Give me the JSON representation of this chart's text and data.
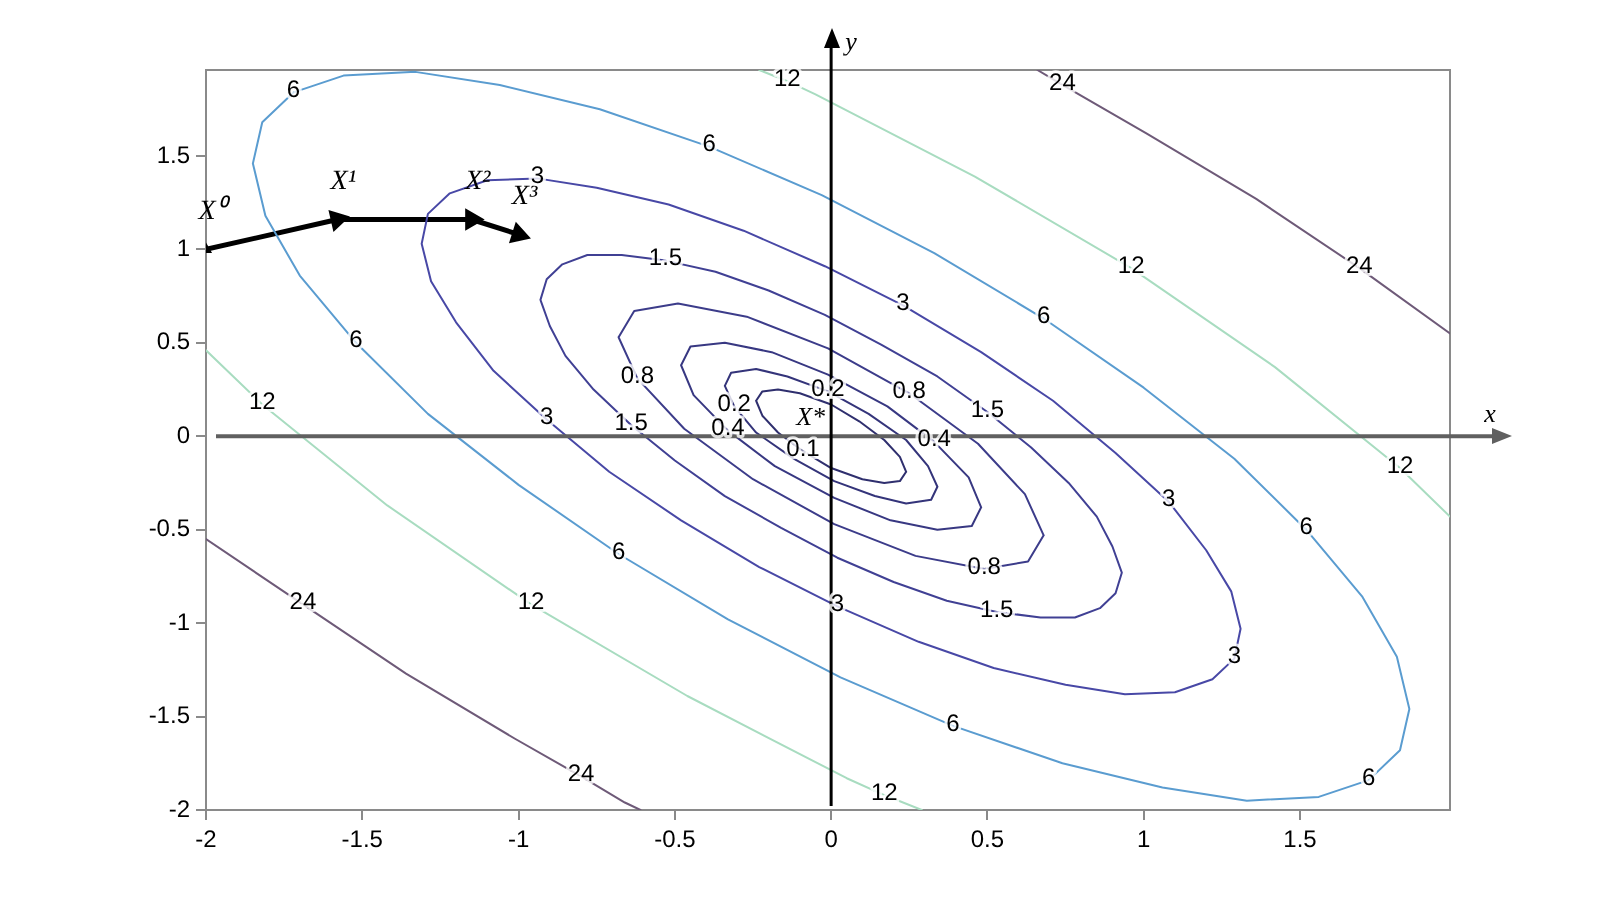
{
  "chart_data": {
    "type": "line",
    "xlim": [
      -2,
      1.98
    ],
    "ylim": [
      -2,
      1.96
    ],
    "xticks": [
      -2,
      -1.5,
      -1,
      -0.5,
      0,
      0.5,
      1,
      1.5
    ],
    "yticks": [
      -2,
      -1.5,
      -1,
      -0.5,
      0,
      0.5,
      1,
      1.5
    ],
    "grid": false,
    "legend": false,
    "series": [
      {
        "color": "#2f2f6e",
        "x": [
          -0.24,
          -0.22,
          -0.17,
          -0.1,
          0.0,
          0.09,
          0.17,
          0.22,
          0.24,
          null,
          -0.24,
          -0.22,
          -0.17,
          -0.09,
          0.0,
          0.1,
          0.17,
          0.22,
          0.24
        ],
        "values": [
          0.19,
          0.24,
          0.25,
          0.23,
          0.17,
          0.08,
          -0.02,
          -0.11,
          -0.19,
          null,
          0.19,
          0.11,
          0.02,
          -0.08,
          -0.17,
          -0.23,
          -0.25,
          -0.24,
          -0.19
        ]
      },
      {
        "color": "#34347a",
        "x": [
          -0.34,
          -0.32,
          -0.24,
          -0.14,
          -0.01,
          0.12,
          0.24,
          0.31,
          0.34,
          null,
          -0.34,
          -0.31,
          -0.24,
          -0.12,
          0.01,
          0.14,
          0.24,
          0.32,
          0.34
        ],
        "values": [
          0.27,
          0.34,
          0.36,
          0.32,
          0.24,
          0.12,
          -0.02,
          -0.16,
          -0.27,
          null,
          0.27,
          0.16,
          0.02,
          -0.12,
          -0.24,
          -0.32,
          -0.36,
          -0.34,
          -0.27
        ]
      },
      {
        "color": "#383882",
        "x": [
          -0.48,
          -0.45,
          -0.34,
          -0.19,
          -0.01,
          0.18,
          0.33,
          0.44,
          0.48,
          null,
          -0.48,
          -0.44,
          -0.33,
          -0.18,
          0.01,
          0.19,
          0.34,
          0.45,
          0.48
        ],
        "values": [
          0.38,
          0.48,
          0.5,
          0.45,
          0.33,
          0.16,
          -0.03,
          -0.22,
          -0.38,
          null,
          0.38,
          0.22,
          0.03,
          -0.16,
          -0.33,
          -0.45,
          -0.5,
          -0.48,
          -0.38
        ]
      },
      {
        "color": "#3c3c8a",
        "x": [
          -0.68,
          -0.63,
          -0.49,
          -0.27,
          -0.01,
          0.25,
          0.47,
          0.62,
          0.68,
          null,
          -0.68,
          -0.62,
          -0.47,
          -0.25,
          0.01,
          0.27,
          0.49,
          0.63,
          0.68
        ],
        "values": [
          0.53,
          0.67,
          0.71,
          0.64,
          0.47,
          0.23,
          -0.04,
          -0.31,
          -0.53,
          null,
          0.53,
          0.31,
          0.04,
          -0.23,
          -0.47,
          -0.64,
          -0.71,
          -0.67,
          -0.53
        ]
      },
      {
        "color": "#404094",
        "x": [
          -0.93,
          -0.91,
          -0.86,
          -0.78,
          -0.67,
          -0.53,
          -0.37,
          -0.2,
          -0.02,
          0.16,
          0.34,
          0.5,
          0.64,
          0.76,
          0.85,
          0.9,
          0.93,
          null,
          -0.93,
          -0.9,
          -0.85,
          -0.76,
          -0.64,
          -0.5,
          -0.34,
          -0.16,
          0.02,
          0.2,
          0.37,
          0.53,
          0.67,
          0.78,
          0.86,
          0.91,
          0.93
        ],
        "values": [
          0.73,
          0.84,
          0.92,
          0.97,
          0.97,
          0.94,
          0.88,
          0.78,
          0.65,
          0.49,
          0.32,
          0.13,
          -0.06,
          -0.25,
          -0.43,
          -0.59,
          -0.73,
          null,
          0.73,
          0.59,
          0.43,
          0.25,
          0.06,
          -0.13,
          -0.32,
          -0.49,
          -0.65,
          -0.78,
          -0.88,
          -0.94,
          -0.97,
          -0.97,
          -0.92,
          -0.84,
          -0.73
        ]
      },
      {
        "color": "#4848a6",
        "x": [
          -1.31,
          -1.29,
          -1.22,
          -1.1,
          -0.94,
          -0.75,
          -0.52,
          -0.28,
          -0.02,
          0.23,
          0.48,
          0.71,
          0.91,
          1.08,
          1.2,
          1.28,
          1.31,
          null,
          -1.31,
          -1.28,
          -1.2,
          -1.08,
          -0.91,
          -0.71,
          -0.48,
          -0.23,
          0.02,
          0.28,
          0.52,
          0.75,
          0.94,
          1.1,
          1.22,
          1.29,
          1.31
        ],
        "values": [
          1.03,
          1.19,
          1.3,
          1.37,
          1.38,
          1.33,
          1.24,
          1.1,
          0.91,
          0.7,
          0.45,
          0.19,
          -0.09,
          -0.35,
          -0.61,
          -0.83,
          -1.03,
          null,
          1.03,
          0.83,
          0.61,
          0.35,
          0.09,
          -0.19,
          -0.45,
          -0.7,
          -0.91,
          -1.1,
          -1.24,
          -1.33,
          -1.38,
          -1.37,
          -1.3,
          -1.19,
          -1.03
        ]
      },
      {
        "color": "#5a9cd0",
        "x": [
          -1.85,
          -1.82,
          -1.72,
          -1.56,
          -1.33,
          -1.06,
          -0.74,
          -0.39,
          -0.03,
          0.33,
          0.68,
          1.0,
          1.29,
          1.52,
          1.7,
          1.81,
          1.85,
          null,
          -1.85,
          -1.81,
          -1.7,
          -1.52,
          -1.29,
          -1.0,
          -0.68,
          -0.33,
          0.03,
          0.39,
          0.74,
          1.06,
          1.33,
          1.56,
          1.72,
          1.82,
          1.85
        ],
        "values": [
          1.46,
          1.68,
          1.84,
          1.93,
          1.95,
          1.88,
          1.75,
          1.55,
          1.29,
          0.98,
          0.63,
          0.26,
          -0.12,
          -0.5,
          -0.86,
          -1.18,
          -1.46,
          null,
          1.46,
          1.18,
          0.86,
          0.5,
          0.12,
          -0.26,
          -0.63,
          -0.98,
          -1.29,
          -1.55,
          -1.75,
          -1.88,
          -1.95,
          -1.93,
          -1.84,
          -1.68,
          -1.46
        ]
      },
      {
        "color": "#a8dcc0",
        "x": [
          -0.23,
          -0.14,
          -0.05,
          0.46,
          0.96,
          1.42,
          1.82,
          1.98,
          null,
          -2,
          -1.82,
          -1.42,
          -0.96,
          -0.46,
          0.05,
          0.17,
          0.29
        ],
        "values": [
          1.96,
          1.9,
          1.83,
          1.39,
          0.9,
          0.37,
          -0.17,
          -0.43,
          null,
          0.46,
          0.17,
          -0.37,
          -0.9,
          -1.39,
          -1.83,
          -1.92,
          -2
        ]
      },
      {
        "color": "#6e5a78",
        "x": [
          0.66,
          0.74,
          1.01,
          1.36,
          1.69,
          1.98,
          null,
          -2,
          -1.69,
          -1.36,
          -1.01,
          -0.8,
          -0.66,
          -0.61
        ],
        "values": [
          1.96,
          1.88,
          1.62,
          1.27,
          0.9,
          0.55,
          null,
          -0.55,
          -0.9,
          -1.27,
          -1.62,
          -1.82,
          -1.96,
          -2
        ]
      },
      {
        "color": "#000000",
        "marker": "triangle",
        "x": [
          -2,
          -1.58,
          -1.15,
          -1.0
        ],
        "values": [
          1.0,
          1.16,
          1.16,
          1.08
        ]
      }
    ],
    "ref_lines": [
      {
        "axis": "y",
        "value": 0,
        "label": "x",
        "color": "#606060"
      },
      {
        "axis": "x",
        "value": 0,
        "label": "y",
        "color": "#000000"
      }
    ],
    "annotations": [
      {
        "text": "X⁰",
        "x": -2,
        "y": 1.0
      },
      {
        "text": "X¹",
        "x": -1.58,
        "y": 1.16
      },
      {
        "text": "X²",
        "x": -1.15,
        "y": 1.16
      },
      {
        "text": "X³",
        "x": -1.0,
        "y": 1.08
      },
      {
        "text": "X*",
        "x": 0,
        "y": 0
      },
      {
        "text": "0.1",
        "x": -0.09,
        "y": -0.08
      },
      {
        "text": "0.2",
        "x": -0.01,
        "y": 0.24
      },
      {
        "text": "0.2",
        "x": -0.31,
        "y": 0.16
      },
      {
        "text": "0.4",
        "x": 0.33,
        "y": -0.03
      },
      {
        "text": "0.4",
        "x": -0.33,
        "y": 0.03
      },
      {
        "text": "0.8",
        "x": 0.25,
        "y": 0.23
      },
      {
        "text": "0.8",
        "x": -0.62,
        "y": 0.31
      },
      {
        "text": "0.8",
        "x": 0.49,
        "y": -0.71
      },
      {
        "text": "1.5",
        "x": -0.53,
        "y": 0.94
      },
      {
        "text": "1.5",
        "x": 0.5,
        "y": 0.13
      },
      {
        "text": "1.5",
        "x": -0.64,
        "y": 0.06
      },
      {
        "text": "1.5",
        "x": 0.53,
        "y": -0.94
      },
      {
        "text": "3",
        "x": -0.94,
        "y": 1.38
      },
      {
        "text": "3",
        "x": 0.23,
        "y": 0.7
      },
      {
        "text": "3",
        "x": 1.08,
        "y": -0.35
      },
      {
        "text": "3",
        "x": -0.91,
        "y": 0.09
      },
      {
        "text": "3",
        "x": 0.02,
        "y": -0.91
      },
      {
        "text": "3",
        "x": 1.29,
        "y": -1.19
      },
      {
        "text": "6",
        "x": -1.72,
        "y": 1.84
      },
      {
        "text": "6",
        "x": -0.39,
        "y": 1.55
      },
      {
        "text": "6",
        "x": 0.68,
        "y": 0.63
      },
      {
        "text": "6",
        "x": 1.52,
        "y": -0.5
      },
      {
        "text": "6",
        "x": -1.52,
        "y": 0.5
      },
      {
        "text": "6",
        "x": -0.68,
        "y": -0.63
      },
      {
        "text": "6",
        "x": 0.39,
        "y": -1.55
      },
      {
        "text": "6",
        "x": 1.72,
        "y": -1.84
      },
      {
        "text": "12",
        "x": -0.14,
        "y": 1.9
      },
      {
        "text": "12",
        "x": 0.96,
        "y": 0.9
      },
      {
        "text": "12",
        "x": 1.82,
        "y": -0.17
      },
      {
        "text": "12",
        "x": -1.82,
        "y": 0.17
      },
      {
        "text": "12",
        "x": -0.96,
        "y": -0.9
      },
      {
        "text": "12",
        "x": 0.17,
        "y": -1.92
      },
      {
        "text": "24",
        "x": 0.74,
        "y": 1.88
      },
      {
        "text": "24",
        "x": 1.69,
        "y": 0.9
      },
      {
        "text": "24",
        "x": -1.69,
        "y": -0.9
      },
      {
        "text": "24",
        "x": -0.8,
        "y": -1.82
      }
    ]
  }
}
